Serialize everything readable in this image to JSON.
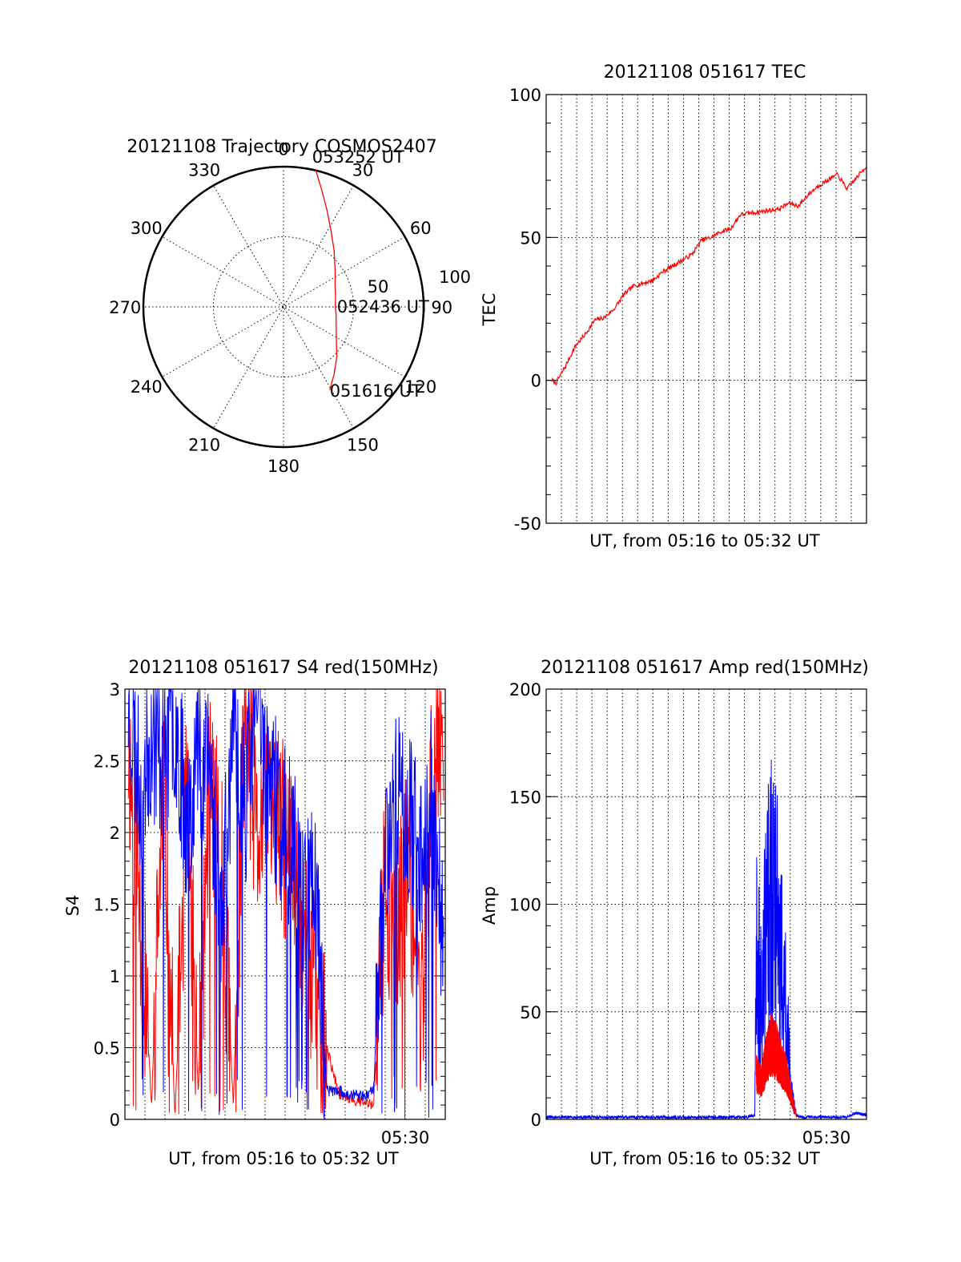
{
  "chart_data": [
    {
      "id": "trajectory",
      "type": "polar",
      "title": "20121108 Trajectory COSMOS2407",
      "azimuth_labels": [
        "0",
        "30",
        "60",
        "90",
        "120",
        "150",
        "180",
        "210",
        "240",
        "270",
        "300",
        "330"
      ],
      "radial_labels": [
        "50",
        "100"
      ],
      "rlim": [
        0,
        100
      ],
      "grid": true,
      "series": [
        {
          "color": "#ff0000",
          "azimuth_deg": [
            13,
            18,
            24,
            32,
            42,
            55,
            67,
            78,
            89,
            99,
            110,
            121,
            133,
            143,
            151
          ],
          "radius": [
            101,
            88,
            76,
            64,
            54,
            45,
            40,
            38,
            37,
            38,
            40,
            44,
            52,
            60,
            68
          ]
        }
      ],
      "annotations": [
        {
          "text": "053252 UT",
          "azimuth_deg": 13,
          "radius": 101
        },
        {
          "text": "052436 UT",
          "azimuth_deg": 89,
          "radius": 37
        },
        {
          "text": "051616 UT",
          "azimuth_deg": 151,
          "radius": 68
        }
      ]
    },
    {
      "id": "tec",
      "type": "line",
      "title": "20121108 051617 TEC",
      "xlabel": "UT, from 05:16 to 05:32 UT",
      "ylabel": "TEC",
      "xlim": [
        "05:16",
        "05:32:30"
      ],
      "ylim": [
        -50,
        100
      ],
      "yticks": [
        "-50",
        "0",
        "50",
        "100"
      ],
      "xticks": [],
      "grid": true,
      "series": [
        {
          "color": "#ff0000",
          "x": [
            "05:16:17",
            "05:16:30",
            "05:17:00",
            "05:17:30",
            "05:18:00",
            "05:18:30",
            "05:19:00",
            "05:19:30",
            "05:20:00",
            "05:20:30",
            "05:21:00",
            "05:21:30",
            "05:22:00",
            "05:22:30",
            "05:23:00",
            "05:23:30",
            "05:24:00",
            "05:24:30",
            "05:25:00",
            "05:25:30",
            "05:26:00",
            "05:27:00",
            "05:28:00",
            "05:28:30",
            "05:29:00",
            "05:29:30",
            "05:30:00",
            "05:30:30",
            "05:31:00",
            "05:31:30",
            "05:32:00",
            "05:32:30"
          ],
          "y": [
            0,
            -1,
            5,
            12,
            16,
            21,
            22,
            25,
            30,
            33,
            34,
            35,
            38,
            40,
            42,
            44,
            49,
            50,
            52,
            53,
            58,
            59,
            60,
            62,
            61,
            65,
            68,
            70,
            72,
            67,
            71,
            75
          ]
        }
      ]
    },
    {
      "id": "s4",
      "type": "line",
      "title": "20121108 051617 S4 red(150MHz)",
      "xlabel": "UT, from 05:16 to 05:32 UT",
      "ylabel": "S4",
      "xlim": [
        "05:16",
        "05:32"
      ],
      "ylim": [
        0,
        3
      ],
      "yticks": [
        "0",
        "0.5",
        "1",
        "1.5",
        "2",
        "2.5",
        "3"
      ],
      "xticks": [
        "05:30"
      ],
      "grid": true,
      "series": [
        {
          "color": "#ff0000",
          "x": [
            "05:16:10",
            "05:16:45",
            "05:17:20",
            "05:17:55",
            "05:18:30",
            "05:19:05",
            "05:19:40",
            "05:20:15",
            "05:20:50",
            "05:21:25",
            "05:22:00",
            "05:22:35",
            "05:23:10",
            "05:23:45",
            "05:24:20",
            "05:24:55",
            "05:25:30",
            "05:26:05",
            "05:26:40",
            "05:27:15",
            "05:27:50",
            "05:28:25",
            "05:29:00",
            "05:29:35",
            "05:30:10",
            "05:30:45",
            "05:31:20",
            "05:31:55"
          ],
          "y": [
            2.6,
            1.5,
            0.1,
            2.4,
            0.0,
            2.2,
            0.2,
            2.5,
            1.7,
            0.1,
            2.8,
            1.9,
            2.3,
            2.0,
            1.8,
            1.3,
            0.9,
            0.5,
            0.18,
            0.15,
            0.12,
            0.1,
            1.7,
            1.2,
            1.9,
            0.6,
            2.5,
            2.9
          ]
        },
        {
          "color": "#0000ff",
          "x": [
            "05:16:10",
            "05:16:45",
            "05:17:20",
            "05:17:55",
            "05:18:30",
            "05:19:05",
            "05:19:40",
            "05:20:15",
            "05:20:50",
            "05:21:25",
            "05:22:00",
            "05:22:35",
            "05:23:10",
            "05:23:45",
            "05:24:20",
            "05:24:55",
            "05:25:30",
            "05:26:05",
            "05:26:40",
            "05:27:15",
            "05:27:50",
            "05:28:25",
            "05:29:00",
            "05:29:35",
            "05:30:10",
            "05:30:45",
            "05:31:20",
            "05:31:55"
          ],
          "y": [
            2.9,
            2.3,
            2.7,
            2.5,
            2.8,
            2.1,
            2.6,
            2.4,
            1.4,
            2.7,
            2.2,
            2.9,
            2.4,
            2.1,
            1.9,
            1.6,
            1.7,
            0.2,
            0.2,
            0.17,
            0.16,
            0.2,
            1.9,
            2.3,
            2.1,
            1.9,
            2.3,
            1.1
          ]
        }
      ]
    },
    {
      "id": "amp",
      "type": "line",
      "title": "20121108 051617 Amp red(150MHz)",
      "xlabel": "UT, from 05:16 to 05:32 UT",
      "ylabel": "Amp",
      "xlim": [
        "05:16",
        "05:32"
      ],
      "ylim": [
        0,
        200
      ],
      "yticks": [
        "0",
        "50",
        "100",
        "150",
        "200"
      ],
      "xticks": [
        "05:30"
      ],
      "grid": true,
      "series": [
        {
          "color": "#0000ff",
          "x": [
            "05:16:00",
            "05:18:00",
            "05:20:00",
            "05:22:00",
            "05:24:00",
            "05:26:00",
            "05:26:25",
            "05:26:30",
            "05:26:45",
            "05:27:00",
            "05:27:15",
            "05:27:30",
            "05:27:45",
            "05:28:00",
            "05:28:15",
            "05:28:30",
            "05:28:45",
            "05:29:00",
            "05:29:30",
            "05:30:00",
            "05:30:30",
            "05:31:00",
            "05:31:30",
            "05:32:00"
          ],
          "y": [
            1,
            1,
            1,
            1,
            1,
            1,
            2,
            130,
            90,
            150,
            170,
            160,
            120,
            80,
            20,
            2,
            1,
            1,
            1,
            1,
            1,
            1,
            3,
            2
          ]
        },
        {
          "color": "#ff0000",
          "x": [
            "05:26:30",
            "05:26:45",
            "05:27:00",
            "05:27:15",
            "05:27:30",
            "05:27:45",
            "05:28:00",
            "05:28:15",
            "05:28:30"
          ],
          "y": [
            30,
            25,
            40,
            50,
            45,
            35,
            30,
            15,
            1
          ]
        }
      ]
    }
  ]
}
